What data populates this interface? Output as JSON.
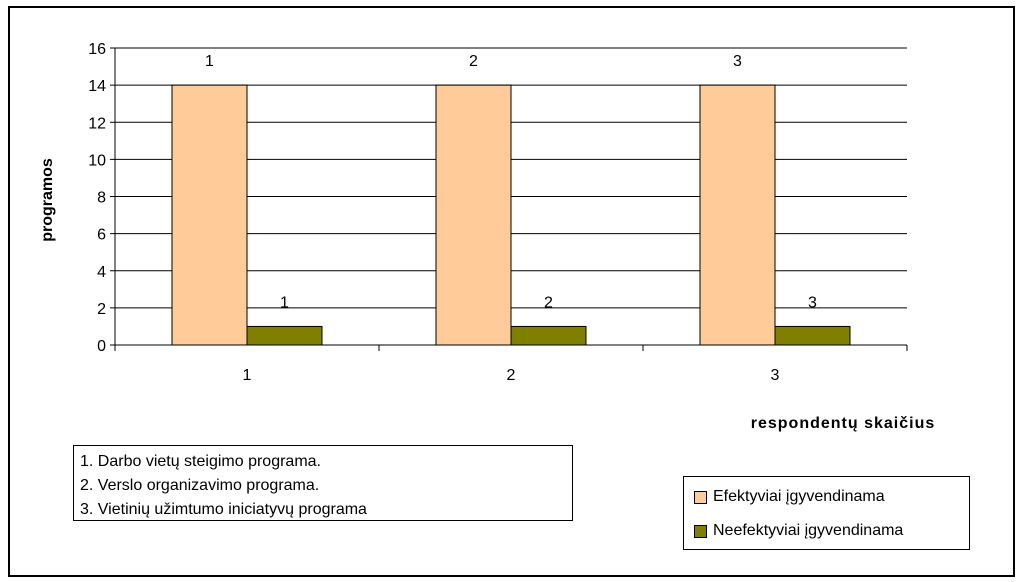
{
  "chart_data": {
    "type": "bar",
    "categories": [
      "1",
      "2",
      "3"
    ],
    "series": [
      {
        "name": "Efektyviai įgyvendinama",
        "values": [
          14,
          14,
          14
        ],
        "color": "#FFCC99",
        "labels": [
          "1",
          "2",
          "3"
        ]
      },
      {
        "name": "Neefektyviai įgyvendinama",
        "values": [
          1,
          1,
          1
        ],
        "color": "#808000",
        "labels": [
          "1",
          "2",
          "3"
        ]
      }
    ],
    "xlabel": "respondentų skaičius",
    "ylabel": "programos",
    "ylim": [
      0,
      16
    ],
    "yticks": [
      "0",
      "2",
      "4",
      "6",
      "8",
      "10",
      "12",
      "14",
      "16"
    ],
    "grid": true,
    "legend": "bottom-right"
  },
  "notes": [
    "1. Darbo vietų steigimo programa.",
    "2. Verslo organizavimo programa.",
    "3. Vietinių užimtumo iniciatyvų programa"
  ]
}
